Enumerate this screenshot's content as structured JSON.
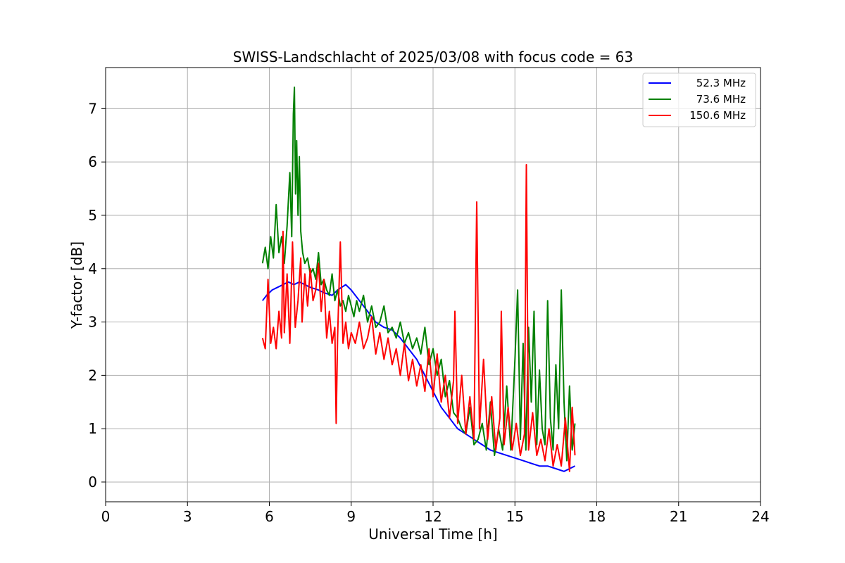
{
  "chart_data": {
    "type": "line",
    "title": "SWISS-Landschlacht of 2025/03/08 with focus code = 63",
    "xlabel": "Universal Time [h]",
    "ylabel": "Y-factor [dB]",
    "xlim": [
      0,
      24
    ],
    "ylim": [
      -0.37,
      7.77
    ],
    "xticks": [
      0,
      3,
      6,
      9,
      12,
      15,
      18,
      21,
      24
    ],
    "yticks": [
      0,
      1,
      2,
      3,
      4,
      5,
      6,
      7
    ],
    "grid": true,
    "legend_position": "top-right",
    "series": [
      {
        "name": "52.3 MHz",
        "color": "#0000ff",
        "x": [
          5.75,
          5.9,
          6.1,
          6.3,
          6.5,
          6.7,
          6.9,
          7.1,
          7.3,
          7.5,
          7.8,
          8.0,
          8.3,
          8.5,
          8.8,
          9.0,
          9.3,
          9.6,
          9.9,
          10.2,
          10.5,
          10.8,
          11.1,
          11.4,
          11.7,
          12.0,
          12.3,
          12.6,
          12.9,
          13.2,
          13.5,
          13.8,
          14.1,
          14.4,
          14.7,
          15.0,
          15.3,
          15.6,
          15.9,
          16.2,
          16.5,
          16.8,
          17.0,
          17.2
        ],
        "y": [
          3.4,
          3.5,
          3.6,
          3.65,
          3.7,
          3.75,
          3.7,
          3.75,
          3.7,
          3.65,
          3.6,
          3.55,
          3.5,
          3.6,
          3.7,
          3.6,
          3.4,
          3.2,
          3.0,
          2.9,
          2.85,
          2.7,
          2.5,
          2.3,
          2.0,
          1.7,
          1.4,
          1.2,
          1.0,
          0.9,
          0.8,
          0.7,
          0.6,
          0.55,
          0.5,
          0.45,
          0.4,
          0.35,
          0.3,
          0.3,
          0.25,
          0.2,
          0.25,
          0.3
        ]
      },
      {
        "name": "73.6 MHz",
        "color": "#008000",
        "x": [
          5.75,
          5.85,
          5.95,
          6.05,
          6.15,
          6.25,
          6.35,
          6.45,
          6.55,
          6.65,
          6.75,
          6.82,
          6.88,
          6.92,
          6.96,
          7.0,
          7.05,
          7.1,
          7.15,
          7.22,
          7.3,
          7.4,
          7.5,
          7.6,
          7.7,
          7.8,
          7.9,
          8.0,
          8.1,
          8.2,
          8.3,
          8.4,
          8.5,
          8.6,
          8.7,
          8.8,
          8.9,
          9.0,
          9.1,
          9.2,
          9.3,
          9.45,
          9.6,
          9.75,
          9.9,
          10.05,
          10.2,
          10.35,
          10.5,
          10.65,
          10.8,
          10.95,
          11.1,
          11.25,
          11.4,
          11.55,
          11.7,
          11.85,
          12.0,
          12.15,
          12.3,
          12.45,
          12.6,
          12.75,
          12.9,
          13.05,
          13.2,
          13.35,
          13.5,
          13.65,
          13.8,
          13.95,
          14.1,
          14.25,
          14.4,
          14.55,
          14.7,
          14.85,
          15.0,
          15.1,
          15.2,
          15.3,
          15.4,
          15.5,
          15.6,
          15.7,
          15.8,
          15.9,
          16.0,
          16.1,
          16.2,
          16.3,
          16.4,
          16.5,
          16.6,
          16.7,
          16.8,
          16.9,
          17.0,
          17.1,
          17.2
        ],
        "y": [
          4.1,
          4.4,
          4.0,
          4.6,
          4.2,
          5.2,
          4.3,
          4.6,
          4.1,
          4.8,
          5.8,
          4.6,
          6.9,
          7.4,
          5.4,
          6.4,
          5.0,
          6.1,
          4.7,
          4.3,
          4.1,
          4.2,
          3.9,
          4.0,
          3.8,
          4.3,
          3.7,
          3.8,
          3.6,
          3.5,
          3.9,
          3.4,
          3.6,
          3.3,
          3.4,
          3.2,
          3.5,
          3.3,
          3.1,
          3.4,
          3.2,
          3.5,
          3.0,
          3.3,
          2.9,
          3.0,
          3.3,
          2.8,
          2.9,
          2.7,
          3.0,
          2.6,
          2.8,
          2.5,
          2.7,
          2.4,
          2.9,
          2.2,
          2.5,
          2.0,
          2.3,
          1.6,
          1.9,
          1.3,
          1.2,
          1.0,
          0.9,
          1.4,
          0.7,
          0.8,
          1.1,
          0.6,
          1.5,
          0.5,
          1.0,
          0.6,
          1.8,
          0.6,
          2.3,
          3.6,
          0.8,
          2.6,
          0.6,
          2.9,
          1.5,
          3.2,
          0.7,
          2.1,
          1.0,
          0.7,
          3.4,
          1.2,
          0.6,
          2.2,
          1.0,
          3.6,
          1.5,
          0.4,
          1.8,
          0.6,
          1.1
        ]
      },
      {
        "name": "150.6 MHz",
        "color": "#ff0000",
        "x": [
          5.75,
          5.85,
          5.95,
          6.05,
          6.15,
          6.25,
          6.35,
          6.45,
          6.5,
          6.55,
          6.65,
          6.75,
          6.85,
          6.95,
          7.05,
          7.15,
          7.2,
          7.3,
          7.4,
          7.5,
          7.6,
          7.7,
          7.8,
          7.9,
          8.0,
          8.1,
          8.2,
          8.3,
          8.4,
          8.45,
          8.5,
          8.6,
          8.7,
          8.8,
          8.9,
          9.0,
          9.15,
          9.3,
          9.45,
          9.6,
          9.75,
          9.9,
          10.05,
          10.2,
          10.35,
          10.5,
          10.65,
          10.8,
          10.95,
          11.1,
          11.25,
          11.4,
          11.55,
          11.7,
          11.85,
          12.0,
          12.15,
          12.3,
          12.45,
          12.6,
          12.75,
          12.8,
          12.9,
          13.05,
          13.2,
          13.35,
          13.5,
          13.6,
          13.7,
          13.85,
          14.0,
          14.15,
          14.3,
          14.45,
          14.5,
          14.6,
          14.75,
          14.9,
          15.05,
          15.2,
          15.35,
          15.42,
          15.5,
          15.65,
          15.8,
          15.95,
          16.1,
          16.25,
          16.4,
          16.55,
          16.7,
          16.85,
          17.0,
          17.1,
          17.2
        ],
        "y": [
          2.7,
          2.5,
          3.8,
          2.6,
          2.9,
          2.5,
          3.2,
          2.7,
          4.7,
          2.8,
          3.9,
          2.6,
          4.5,
          2.9,
          3.4,
          4.2,
          3.0,
          3.9,
          3.3,
          4.0,
          3.4,
          3.6,
          4.1,
          3.2,
          3.8,
          2.7,
          3.2,
          2.6,
          2.9,
          1.1,
          2.7,
          4.5,
          2.6,
          3.0,
          2.5,
          2.8,
          2.6,
          3.0,
          2.5,
          2.7,
          3.1,
          2.4,
          2.8,
          2.3,
          2.7,
          2.2,
          2.5,
          2.0,
          2.6,
          1.9,
          2.3,
          1.8,
          2.2,
          1.7,
          2.5,
          1.6,
          2.4,
          1.5,
          2.0,
          1.2,
          1.9,
          3.2,
          1.1,
          2.0,
          0.9,
          1.6,
          0.8,
          5.25,
          1.0,
          2.3,
          0.8,
          1.6,
          0.6,
          1.2,
          3.2,
          0.7,
          1.4,
          0.6,
          1.1,
          0.5,
          0.9,
          5.95,
          0.6,
          1.3,
          0.5,
          0.8,
          0.4,
          1.0,
          0.3,
          0.7,
          0.3,
          1.2,
          0.2,
          1.4,
          0.5
        ]
      }
    ]
  }
}
